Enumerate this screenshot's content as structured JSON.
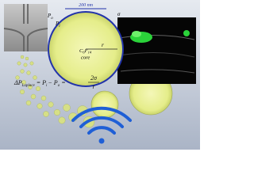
{
  "scale_bar": "200 nm",
  "droplet": {
    "outer_pressure": {
      "symbol": "P",
      "subscript": "o"
    },
    "inner_pressure": {
      "symbol": "P",
      "subscript": "i"
    },
    "tension": "σ",
    "radius": "r",
    "core": [
      "C",
      "6",
      "F",
      "14",
      "core"
    ]
  },
  "equation": [
    "ΔP",
    "Laplace",
    "= P",
    "i",
    "− P",
    "o",
    "=",
    "2σ",
    "r"
  ]
}
